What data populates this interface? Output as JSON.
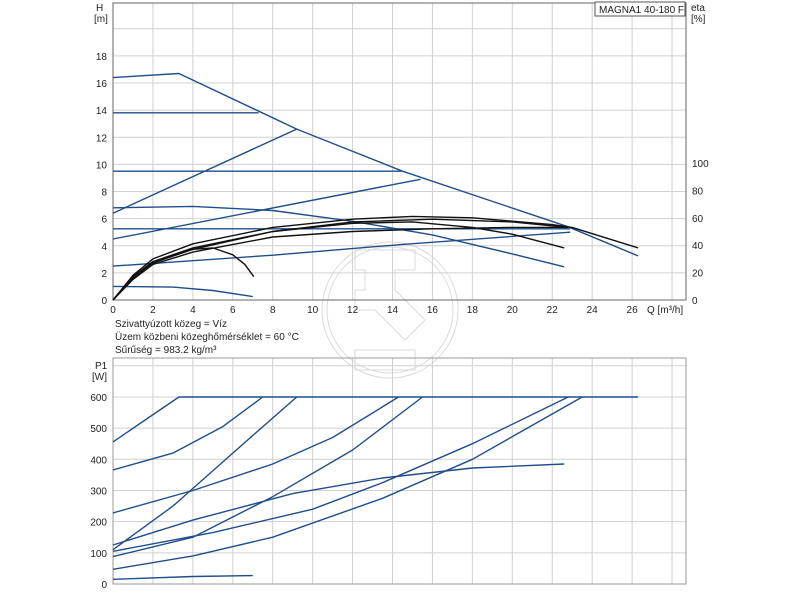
{
  "title_box": "MAGNA1 40-180 F",
  "info_lines": [
    "Szivattyúzott közeg = Víz",
    "Üzem közbeni közeghőmérséklet = 60 °C",
    "Sűrűség = 983.2 kg/m³"
  ],
  "colors": {
    "curve_blue": "#1f4e8c",
    "eta_black": "#111111",
    "grid": "#d0d0d0"
  },
  "chart_data": [
    {
      "type": "line",
      "title": "",
      "ylabel": "H",
      "yunit": "[m]",
      "y2label": "eta",
      "y2unit": "[%]",
      "xlabel": "Q [m³/h]",
      "xlim": [
        0,
        28.7
      ],
      "ylim": [
        0,
        21.9
      ],
      "y2lim": [
        0,
        100
      ],
      "grid": true,
      "x_ticks": [
        0,
        2,
        4,
        6,
        8,
        10,
        12,
        14,
        16,
        18,
        20,
        22,
        24,
        26
      ],
      "y_ticks": [
        0,
        2,
        4,
        6,
        8,
        10,
        12,
        14,
        16,
        18
      ],
      "y2_ticks": [
        0,
        20,
        40,
        60,
        80,
        100
      ],
      "head_series": [
        {
          "points": [
            [
              0,
              16.4
            ],
            [
              3.3,
              16.7
            ],
            [
              9.2,
              12.6
            ],
            [
              14.5,
              9.5
            ],
            [
              22.8,
              5.4
            ],
            [
              26.3,
              3.25
            ]
          ]
        },
        {
          "points": [
            [
              0,
              13.8
            ],
            [
              7.3,
              13.8
            ]
          ]
        },
        {
          "points": [
            [
              0,
              6.4
            ],
            [
              9.2,
              12.6
            ]
          ]
        },
        {
          "points": [
            [
              0,
              9.5
            ],
            [
              14.5,
              9.5
            ]
          ]
        },
        {
          "points": [
            [
              0,
              4.5
            ],
            [
              15.4,
              8.9
            ]
          ]
        },
        {
          "points": [
            [
              0,
              6.8
            ],
            [
              4,
              6.9
            ],
            [
              8,
              6.6
            ],
            [
              12,
              5.8
            ],
            [
              16,
              4.8
            ],
            [
              20,
              3.4
            ],
            [
              22.6,
              2.45
            ]
          ]
        },
        {
          "points": [
            [
              0,
              5.25
            ],
            [
              22.9,
              5.25
            ]
          ]
        },
        {
          "points": [
            [
              0,
              2.5
            ],
            [
              8,
              3.3
            ],
            [
              14.5,
              4.1
            ],
            [
              22.9,
              5.0
            ]
          ]
        },
        {
          "points": [
            [
              0,
              1.0
            ],
            [
              3,
              0.95
            ],
            [
              5,
              0.7
            ],
            [
              7,
              0.25
            ]
          ]
        }
      ],
      "eta_series": [
        {
          "points": [
            [
              0,
              0
            ],
            [
              1,
              17
            ],
            [
              2,
              27
            ],
            [
              3,
              33
            ],
            [
              4,
              37
            ],
            [
              5,
              38
            ],
            [
              6,
              33
            ],
            [
              6.6,
              26
            ],
            [
              7.05,
              17
            ]
          ]
        },
        {
          "points": [
            [
              0,
              0
            ],
            [
              1,
              18
            ],
            [
              2,
              30
            ],
            [
              4,
              41
            ],
            [
              8,
              53
            ],
            [
              12,
              59
            ],
            [
              15,
              61
            ],
            [
              18,
              60
            ],
            [
              22,
              55
            ],
            [
              23,
              53
            ],
            [
              26.3,
              38
            ]
          ]
        },
        {
          "points": [
            [
              0,
              0
            ],
            [
              1,
              17
            ],
            [
              2,
              28
            ],
            [
              4,
              38
            ],
            [
              8,
              50
            ],
            [
              12,
              56
            ],
            [
              15,
              57
            ],
            [
              18,
              53
            ],
            [
              20,
              48
            ],
            [
              22.6,
              38
            ]
          ]
        },
        {
          "points": [
            [
              0,
              0
            ],
            [
              1,
              15
            ],
            [
              2,
              26
            ],
            [
              4,
              35
            ],
            [
              8,
              46
            ],
            [
              12,
              50
            ],
            [
              16,
              52
            ],
            [
              20,
              53
            ],
            [
              22.8,
              53
            ]
          ]
        },
        {
          "points": [
            [
              0,
              0
            ],
            [
              1,
              16
            ],
            [
              2,
              27
            ],
            [
              4,
              37
            ],
            [
              8,
              50
            ],
            [
              12,
              57
            ],
            [
              16,
              59
            ],
            [
              20,
              57
            ],
            [
              22.8,
              53
            ]
          ]
        }
      ]
    },
    {
      "type": "line",
      "title": "",
      "ylabel": "P1",
      "yunit": "[W]",
      "xlim": [
        0,
        28.7
      ],
      "ylim": [
        0,
        725
      ],
      "grid": true,
      "y_ticks": [
        0,
        100,
        200,
        300,
        400,
        500,
        600
      ],
      "series": [
        {
          "points": [
            [
              0,
              456
            ],
            [
              3.3,
              600
            ],
            [
              26.3,
              600
            ]
          ]
        },
        {
          "points": [
            [
              0,
              366
            ],
            [
              3,
              420
            ],
            [
              5.5,
              505
            ],
            [
              7.5,
              600
            ]
          ]
        },
        {
          "points": [
            [
              0,
              110
            ],
            [
              3,
              250
            ],
            [
              6,
              420
            ],
            [
              9.2,
              600
            ]
          ]
        },
        {
          "points": [
            [
              0,
              228
            ],
            [
              4,
              300
            ],
            [
              8,
              385
            ],
            [
              11,
              470
            ],
            [
              14.3,
              600
            ]
          ]
        },
        {
          "points": [
            [
              0,
              88
            ],
            [
              4,
              150
            ],
            [
              8,
              280
            ],
            [
              12,
              430
            ],
            [
              15.5,
              600
            ]
          ]
        },
        {
          "points": [
            [
              0,
              125
            ],
            [
              4,
              205
            ],
            [
              9,
              290
            ],
            [
              13.5,
              340
            ],
            [
              18,
              372
            ],
            [
              22.6,
              385
            ]
          ]
        },
        {
          "points": [
            [
              0,
              105
            ],
            [
              5,
              165
            ],
            [
              10,
              240
            ],
            [
              13.5,
              325
            ],
            [
              18,
              450
            ],
            [
              22.8,
              600
            ]
          ]
        },
        {
          "points": [
            [
              0,
              47
            ],
            [
              4,
              90
            ],
            [
              8,
              150
            ],
            [
              13.5,
              275
            ],
            [
              18,
              400
            ],
            [
              23.5,
              600
            ]
          ]
        },
        {
          "points": [
            [
              0,
              15
            ],
            [
              4,
              24
            ],
            [
              7,
              27
            ]
          ]
        }
      ]
    }
  ]
}
